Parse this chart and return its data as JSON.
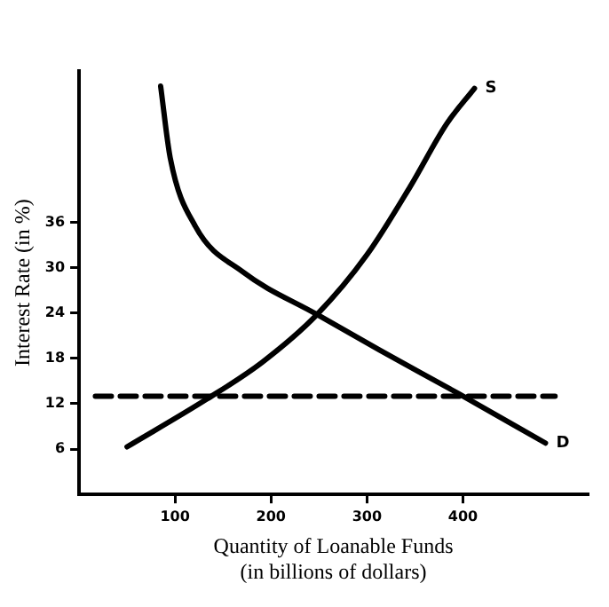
{
  "chart_data": {
    "type": "line",
    "xlabel": "Quantity of Loanable Funds\n(in billions of dollars)",
    "ylabel": "Interest Rate (in %)",
    "xlim": [
      0,
      530
    ],
    "xticks": [
      100,
      200,
      300,
      400
    ],
    "ylim": [
      0,
      56
    ],
    "yticks": [
      6,
      12,
      18,
      24,
      30,
      36
    ],
    "series": [
      {
        "name": "S",
        "color": "#000000",
        "x": [
          50,
          133,
          191,
          248,
          300,
          345,
          383,
          412
        ],
        "values": [
          6.3,
          12.6,
          17.5,
          23.8,
          31.7,
          40.7,
          49,
          53.7
        ]
      },
      {
        "name": "D",
        "color": "#000000",
        "x": [
          85,
          95,
          121,
          171,
          248,
          313,
          396,
          486
        ],
        "values": [
          54,
          44.5,
          35.5,
          29.4,
          23.8,
          19.1,
          13.3,
          6.8
        ]
      },
      {
        "color": "#000000",
        "x": [
          17,
          496
        ],
        "values": [
          13,
          13
        ],
        "line_style": "dashed"
      }
    ],
    "grid": false,
    "legend": false,
    "marker": "none"
  }
}
